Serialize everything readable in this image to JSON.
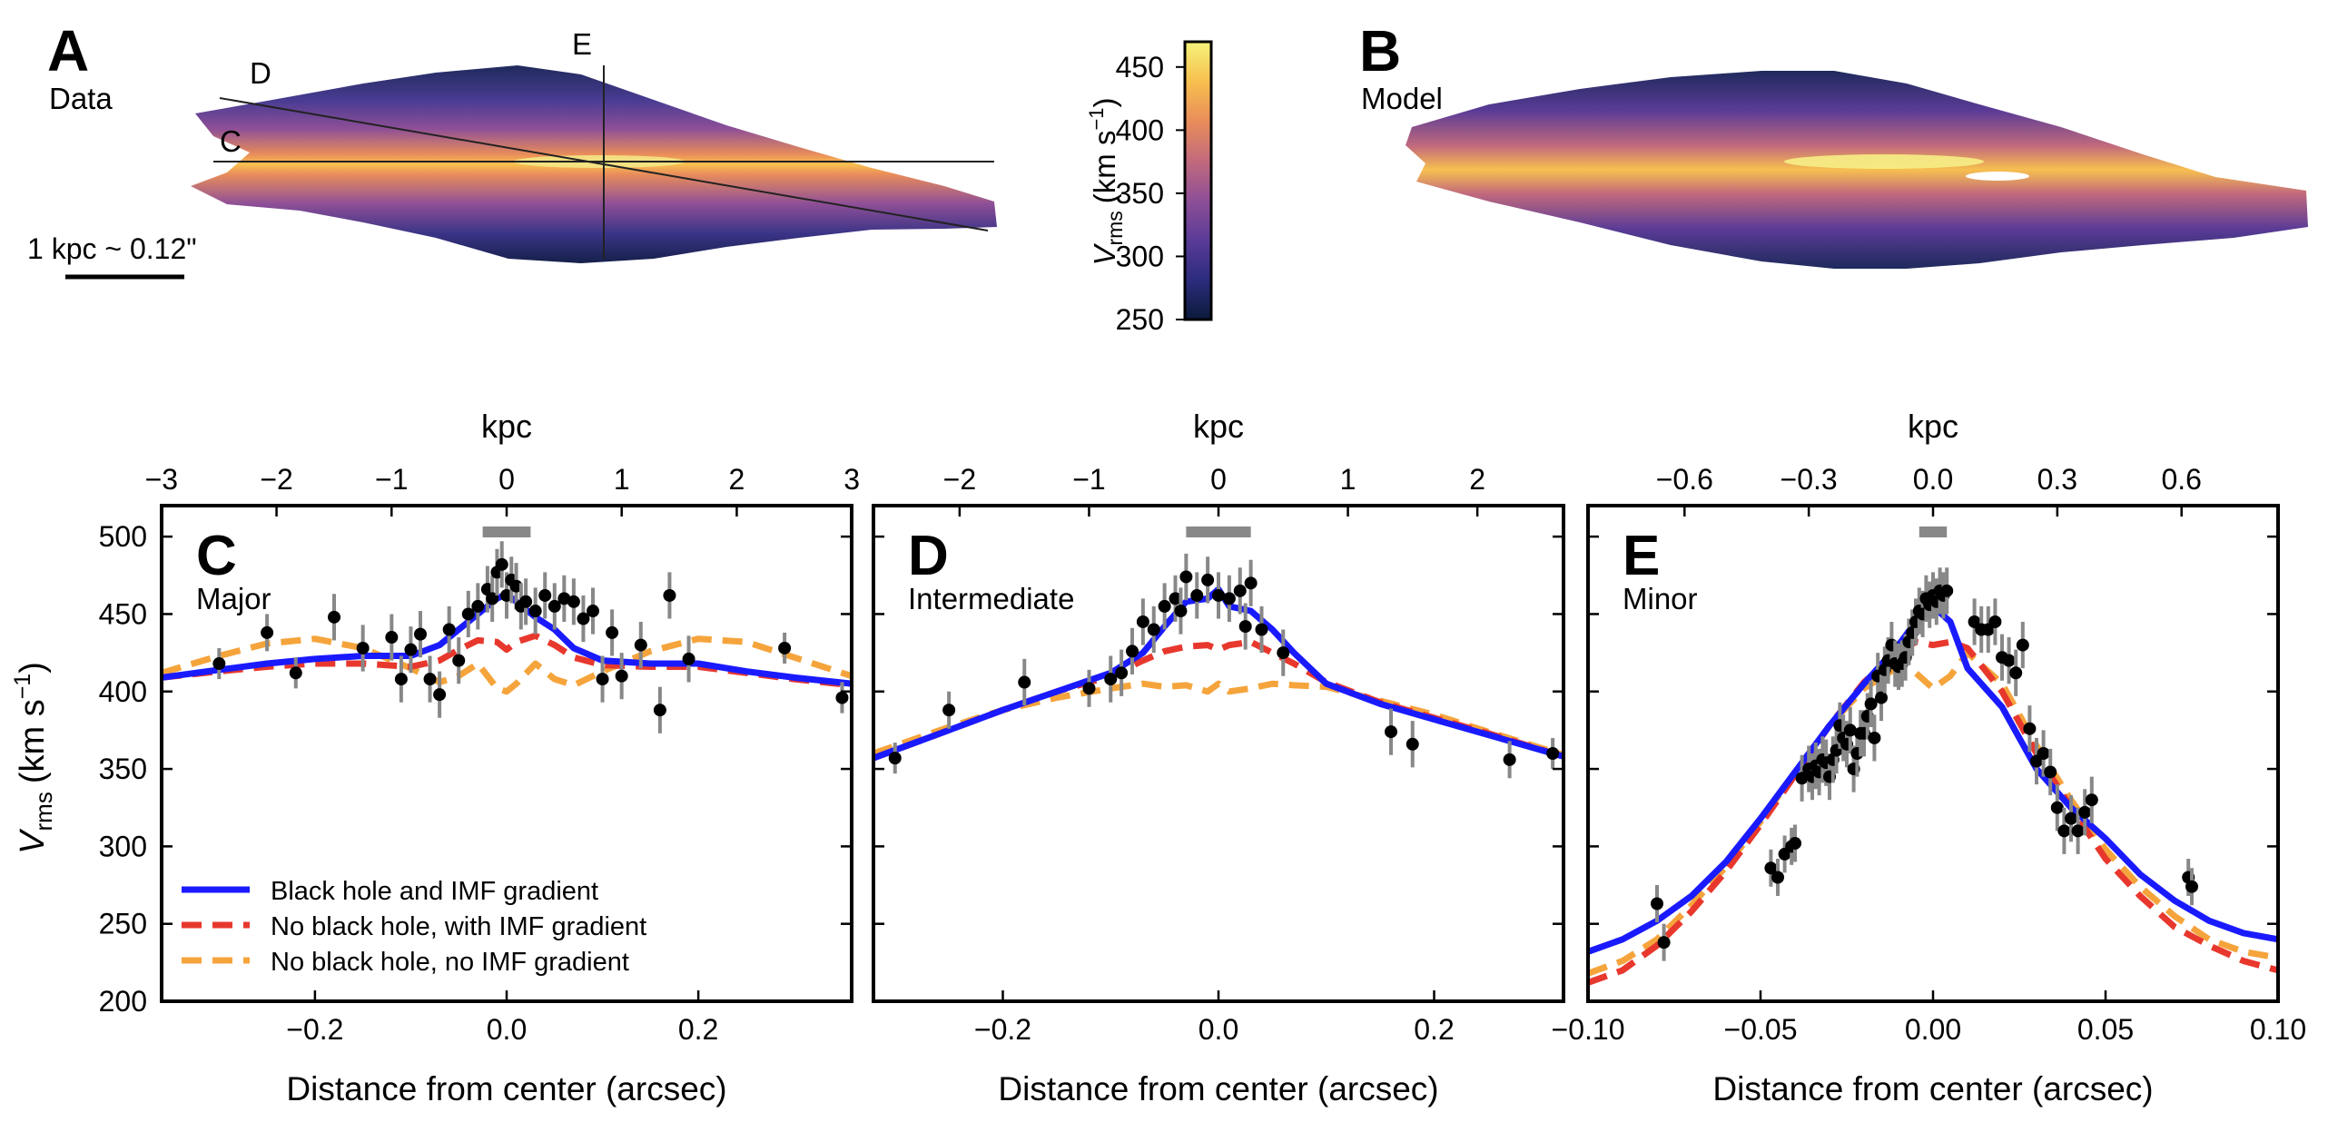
{
  "maps": {
    "a": {
      "letter": "A",
      "label": "Data"
    },
    "b": {
      "letter": "B",
      "label": "Model"
    },
    "cut_labels": [
      "C",
      "D",
      "E"
    ],
    "scale_bar": "1 kpc ~ 0.12\""
  },
  "colorbar": {
    "label_main": "V",
    "label_sub": "rms",
    "label_units": "(km s",
    "label_exp": "−1",
    "label_close": ")",
    "ticks": [
      "450",
      "400",
      "350",
      "300",
      "250"
    ],
    "range": [
      250,
      470
    ],
    "colors": [
      "#0b1a3a",
      "#2c2c7e",
      "#5a3b97",
      "#8e4f97",
      "#c26a7c",
      "#e98d5a",
      "#f7c04f",
      "#f5f37a"
    ]
  },
  "axes_text": {
    "ylabel_main": "V",
    "ylabel_sub": "rms",
    "ylabel_units": "(km s",
    "ylabel_exp": "−1",
    "ylabel_close": ")",
    "xlabel": "Distance from center (arcsec)",
    "top_label": "kpc"
  },
  "legend": [
    {
      "label": "Black hole and IMF gradient",
      "color": "#1a1aff",
      "dashed": false
    },
    {
      "label": "No black hole, with IMF gradient",
      "color": "#e8382d",
      "dashed": true
    },
    {
      "label": "No black hole, no IMF gradient",
      "color": "#f5a43c",
      "dashed": true
    }
  ],
  "chart_data": [
    {
      "type": "line",
      "panel": "C",
      "label": "Major",
      "xlim": [
        -0.36,
        0.36
      ],
      "ylim": [
        200,
        520
      ],
      "xticks": [
        -0.2,
        0.0,
        0.2
      ],
      "xtick_labels": [
        "−0.2",
        "0.0",
        "0.2"
      ],
      "yticks": [
        200,
        250,
        300,
        350,
        400,
        450,
        500
      ],
      "ytick_labels": [
        "200",
        "250",
        "300",
        "350",
        "400",
        "450",
        "500"
      ],
      "top_ticks": [
        -3,
        -2,
        -1,
        0,
        1,
        2,
        3
      ],
      "top_tick_labels": [
        "−3",
        "−2",
        "−1",
        "0",
        "1",
        "2",
        "3"
      ],
      "kpc_per_arcsec": 8.33,
      "resolution_bar": [
        -0.025,
        0.025
      ],
      "series": [
        {
          "name": "Black hole and IMF gradient",
          "color": "#1a1aff",
          "dashed": false,
          "x": [
            -0.36,
            -0.3,
            -0.25,
            -0.2,
            -0.15,
            -0.1,
            -0.07,
            -0.05,
            -0.03,
            -0.01,
            0.0,
            0.01,
            0.03,
            0.05,
            0.07,
            0.1,
            0.15,
            0.2,
            0.25,
            0.3,
            0.36
          ],
          "y": [
            409,
            414,
            418,
            421,
            423,
            423,
            430,
            440,
            450,
            460,
            463,
            458,
            448,
            440,
            428,
            420,
            418,
            418,
            413,
            409,
            405
          ]
        },
        {
          "name": "No black hole, with IMF gradient",
          "color": "#e8382d",
          "dashed": true,
          "x": [
            -0.36,
            -0.3,
            -0.25,
            -0.2,
            -0.15,
            -0.1,
            -0.07,
            -0.05,
            -0.03,
            -0.01,
            0.0,
            0.01,
            0.03,
            0.05,
            0.07,
            0.1,
            0.15,
            0.2,
            0.25,
            0.3,
            0.36
          ],
          "y": [
            409,
            413,
            416,
            418,
            418,
            416,
            420,
            427,
            433,
            432,
            427,
            432,
            436,
            430,
            422,
            417,
            416,
            416,
            412,
            408,
            404
          ]
        },
        {
          "name": "No black hole, no IMF gradient",
          "color": "#f5a43c",
          "dashed": true,
          "x": [
            -0.36,
            -0.3,
            -0.25,
            -0.2,
            -0.15,
            -0.1,
            -0.07,
            -0.05,
            -0.03,
            -0.01,
            0.0,
            0.01,
            0.03,
            0.05,
            0.07,
            0.1,
            0.15,
            0.2,
            0.25,
            0.3,
            0.36
          ],
          "y": [
            412,
            423,
            431,
            434,
            428,
            415,
            406,
            410,
            418,
            402,
            400,
            405,
            418,
            408,
            404,
            413,
            426,
            434,
            432,
            422,
            410
          ]
        }
      ],
      "points": {
        "x": [
          -0.3,
          -0.25,
          -0.22,
          -0.18,
          -0.15,
          -0.12,
          -0.11,
          -0.1,
          -0.09,
          -0.08,
          -0.07,
          -0.06,
          -0.05,
          -0.04,
          -0.03,
          -0.02,
          -0.015,
          -0.01,
          -0.005,
          0.0,
          0.005,
          0.01,
          0.015,
          0.02,
          0.03,
          0.04,
          0.05,
          0.06,
          0.07,
          0.08,
          0.09,
          0.1,
          0.11,
          0.12,
          0.14,
          0.16,
          0.17,
          0.19,
          0.29,
          0.35
        ],
        "y": [
          418,
          438,
          412,
          448,
          428,
          435,
          408,
          427,
          437,
          408,
          398,
          440,
          420,
          450,
          455,
          466,
          460,
          477,
          482,
          462,
          472,
          468,
          455,
          458,
          452,
          462,
          455,
          460,
          458,
          447,
          452,
          408,
          438,
          410,
          430,
          388,
          462,
          421,
          428,
          396
        ],
        "err": [
          10,
          12,
          10,
          15,
          15,
          15,
          15,
          15,
          15,
          15,
          15,
          15,
          15,
          15,
          15,
          15,
          15,
          15,
          15,
          15,
          15,
          15,
          15,
          15,
          15,
          15,
          15,
          15,
          15,
          15,
          15,
          15,
          15,
          15,
          15,
          15,
          15,
          15,
          10,
          10
        ]
      }
    },
    {
      "type": "line",
      "panel": "D",
      "label": "Intermediate",
      "xlim": [
        -0.32,
        0.32
      ],
      "ylim": [
        200,
        520
      ],
      "xticks": [
        -0.2,
        0.0,
        0.2
      ],
      "xtick_labels": [
        "−0.2",
        "0.0",
        "0.2"
      ],
      "yticks": [
        200,
        250,
        300,
        350,
        400,
        450,
        500
      ],
      "top_ticks": [
        -2,
        -1,
        0,
        1,
        2
      ],
      "top_tick_labels": [
        "−2",
        "−1",
        "0",
        "1",
        "2"
      ],
      "kpc_per_arcsec": 8.33,
      "resolution_bar": [
        -0.03,
        0.03
      ],
      "series": [
        {
          "name": "Black hole and IMF gradient",
          "color": "#1a1aff",
          "dashed": false,
          "x": [
            -0.32,
            -0.25,
            -0.2,
            -0.15,
            -0.1,
            -0.07,
            -0.05,
            -0.03,
            -0.01,
            0.0,
            0.01,
            0.03,
            0.05,
            0.07,
            0.1,
            0.15,
            0.2,
            0.25,
            0.32
          ],
          "y": [
            357,
            375,
            388,
            400,
            412,
            425,
            442,
            458,
            460,
            466,
            455,
            452,
            440,
            425,
            405,
            392,
            382,
            372,
            358
          ]
        },
        {
          "name": "No black hole, with IMF gradient",
          "color": "#e8382d",
          "dashed": true,
          "x": [
            -0.32,
            -0.25,
            -0.2,
            -0.15,
            -0.1,
            -0.07,
            -0.05,
            -0.03,
            -0.01,
            0.0,
            0.01,
            0.03,
            0.05,
            0.07,
            0.1,
            0.15,
            0.2,
            0.25,
            0.32
          ],
          "y": [
            357,
            375,
            388,
            400,
            410,
            420,
            426,
            429,
            430,
            427,
            430,
            432,
            425,
            418,
            406,
            393,
            383,
            373,
            358
          ]
        },
        {
          "name": "No black hole, no IMF gradient",
          "color": "#f5a43c",
          "dashed": true,
          "x": [
            -0.32,
            -0.25,
            -0.2,
            -0.15,
            -0.1,
            -0.07,
            -0.05,
            -0.03,
            -0.01,
            0.0,
            0.01,
            0.03,
            0.05,
            0.07,
            0.1,
            0.15,
            0.2,
            0.25,
            0.32
          ],
          "y": [
            360,
            377,
            388,
            396,
            402,
            405,
            403,
            404,
            400,
            405,
            400,
            402,
            405,
            404,
            403,
            394,
            385,
            374,
            359
          ]
        }
      ],
      "points": {
        "x": [
          -0.3,
          -0.25,
          -0.18,
          -0.12,
          -0.1,
          -0.09,
          -0.08,
          -0.07,
          -0.06,
          -0.05,
          -0.04,
          -0.035,
          -0.03,
          -0.02,
          -0.01,
          0.0,
          0.01,
          0.02,
          0.025,
          0.03,
          0.04,
          0.06,
          0.16,
          0.18,
          0.27,
          0.31
        ],
        "y": [
          357,
          388,
          406,
          402,
          408,
          412,
          426,
          445,
          440,
          455,
          460,
          452,
          474,
          462,
          472,
          462,
          460,
          465,
          442,
          470,
          440,
          425,
          374,
          366,
          356,
          360
        ],
        "err": [
          10,
          12,
          15,
          12,
          15,
          15,
          15,
          15,
          15,
          15,
          15,
          15,
          15,
          15,
          15,
          15,
          15,
          15,
          15,
          15,
          15,
          15,
          15,
          15,
          12,
          10
        ]
      }
    },
    {
      "type": "line",
      "panel": "E",
      "label": "Minor",
      "xlim": [
        -0.1,
        0.1
      ],
      "ylim": [
        200,
        520
      ],
      "xticks": [
        -0.1,
        -0.05,
        0.0,
        0.05,
        0.1
      ],
      "xtick_labels": [
        "−0.10",
        "−0.05",
        "0.00",
        "0.05",
        "0.10"
      ],
      "yticks": [
        200,
        250,
        300,
        350,
        400,
        450,
        500
      ],
      "top_ticks": [
        -0.6,
        -0.3,
        0.0,
        0.3,
        0.6
      ],
      "top_tick_labels": [
        "−0.6",
        "−0.3",
        "0.0",
        "0.3",
        "0.6"
      ],
      "kpc_per_arcsec": 8.33,
      "resolution_bar": [
        -0.004,
        0.004
      ],
      "series": [
        {
          "name": "Black hole and IMF gradient",
          "color": "#1a1aff",
          "dashed": false,
          "x": [
            -0.1,
            -0.09,
            -0.08,
            -0.07,
            -0.06,
            -0.05,
            -0.04,
            -0.03,
            -0.02,
            -0.01,
            -0.005,
            0.0,
            0.005,
            0.01,
            0.02,
            0.03,
            0.04,
            0.05,
            0.06,
            0.07,
            0.08,
            0.09,
            0.1
          ],
          "y": [
            232,
            240,
            252,
            268,
            290,
            318,
            348,
            378,
            405,
            430,
            445,
            455,
            445,
            415,
            390,
            350,
            325,
            305,
            282,
            265,
            252,
            244,
            240
          ]
        },
        {
          "name": "No black hole, with IMF gradient",
          "color": "#e8382d",
          "dashed": true,
          "x": [
            -0.1,
            -0.09,
            -0.08,
            -0.07,
            -0.06,
            -0.05,
            -0.04,
            -0.03,
            -0.02,
            -0.01,
            -0.005,
            0.0,
            0.005,
            0.01,
            0.02,
            0.03,
            0.04,
            0.05,
            0.06,
            0.07,
            0.08,
            0.09,
            0.1
          ],
          "y": [
            212,
            220,
            236,
            258,
            284,
            314,
            346,
            378,
            406,
            426,
            432,
            430,
            432,
            428,
            400,
            360,
            325,
            292,
            268,
            248,
            236,
            226,
            220
          ]
        },
        {
          "name": "No black hole, no IMF gradient",
          "color": "#f5a43c",
          "dashed": true,
          "x": [
            -0.1,
            -0.09,
            -0.08,
            -0.07,
            -0.06,
            -0.05,
            -0.04,
            -0.03,
            -0.02,
            -0.01,
            -0.005,
            0.0,
            0.005,
            0.01,
            0.02,
            0.03,
            0.04,
            0.05,
            0.06,
            0.07,
            0.08,
            0.09,
            0.1
          ],
          "y": [
            218,
            226,
            240,
            262,
            287,
            316,
            348,
            378,
            402,
            416,
            412,
            402,
            410,
            425,
            405,
            365,
            330,
            298,
            274,
            255,
            240,
            232,
            228
          ]
        }
      ],
      "points": {
        "x": [
          -0.08,
          -0.078,
          -0.047,
          -0.045,
          -0.043,
          -0.041,
          -0.04,
          -0.038,
          -0.036,
          -0.035,
          -0.034,
          -0.033,
          -0.032,
          -0.031,
          -0.03,
          -0.029,
          -0.028,
          -0.027,
          -0.026,
          -0.025,
          -0.024,
          -0.023,
          -0.022,
          -0.021,
          -0.02,
          -0.019,
          -0.018,
          -0.017,
          -0.016,
          -0.015,
          -0.014,
          -0.013,
          -0.012,
          -0.011,
          -0.01,
          -0.009,
          -0.008,
          -0.007,
          -0.006,
          -0.005,
          -0.004,
          -0.003,
          -0.002,
          -0.001,
          0.0,
          0.001,
          0.002,
          0.003,
          0.004,
          0.012,
          0.014,
          0.016,
          0.018,
          0.02,
          0.022,
          0.024,
          0.026,
          0.028,
          0.03,
          0.032,
          0.034,
          0.036,
          0.038,
          0.04,
          0.042,
          0.044,
          0.046,
          0.074,
          0.075
        ],
        "y": [
          263,
          238,
          286,
          280,
          295,
          300,
          302,
          344,
          350,
          345,
          352,
          348,
          356,
          354,
          345,
          356,
          362,
          378,
          370,
          366,
          375,
          350,
          360,
          373,
          373,
          384,
          392,
          370,
          410,
          396,
          414,
          420,
          430,
          418,
          416,
          418,
          422,
          432,
          438,
          445,
          452,
          450,
          460,
          456,
          462,
          458,
          465,
          462,
          465,
          445,
          440,
          440,
          445,
          422,
          420,
          412,
          430,
          376,
          355,
          360,
          348,
          325,
          310,
          318,
          310,
          322,
          330,
          280,
          274
        ],
        "err": [
          12,
          12,
          12,
          12,
          12,
          12,
          12,
          15,
          15,
          15,
          15,
          15,
          15,
          15,
          15,
          15,
          15,
          15,
          15,
          15,
          15,
          15,
          15,
          15,
          15,
          15,
          15,
          15,
          15,
          15,
          15,
          15,
          15,
          15,
          15,
          15,
          15,
          15,
          15,
          15,
          15,
          15,
          15,
          15,
          15,
          15,
          15,
          15,
          15,
          15,
          15,
          15,
          15,
          15,
          15,
          15,
          15,
          15,
          15,
          15,
          15,
          15,
          15,
          15,
          15,
          15,
          15,
          12,
          12
        ]
      }
    }
  ]
}
